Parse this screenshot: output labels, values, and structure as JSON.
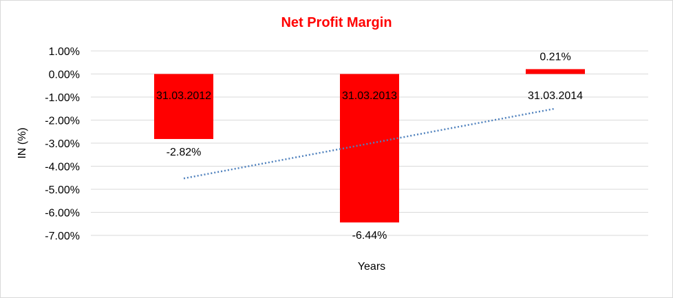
{
  "chart_data": {
    "type": "bar",
    "title": "Net Profit Margin",
    "xlabel": "Years",
    "ylabel": "IN (%)",
    "categories": [
      "31.03.2012",
      "31.03.2013",
      "31.03.2014"
    ],
    "values": [
      -2.82,
      -6.44,
      0.21
    ],
    "data_labels": [
      "-2.82%",
      "-6.44%",
      "0.21%"
    ],
    "ylim": [
      -7,
      1
    ],
    "yticks": [
      1,
      0,
      -1,
      -2,
      -3,
      -4,
      -5,
      -6,
      -7
    ],
    "ytick_labels": [
      "1.00%",
      "0.00%",
      "-1.00%",
      "-2.00%",
      "-3.00%",
      "-4.00%",
      "-5.00%",
      "-6.00%",
      "-7.00%"
    ],
    "grid": true,
    "legend": "none",
    "trendline": {
      "type": "linear",
      "start": -4.53,
      "end": -1.5
    },
    "colors": {
      "bar": "#ff0000",
      "title": "#ff0000",
      "trendline": "#4f81bd",
      "grid": "#d9d9d9"
    }
  }
}
